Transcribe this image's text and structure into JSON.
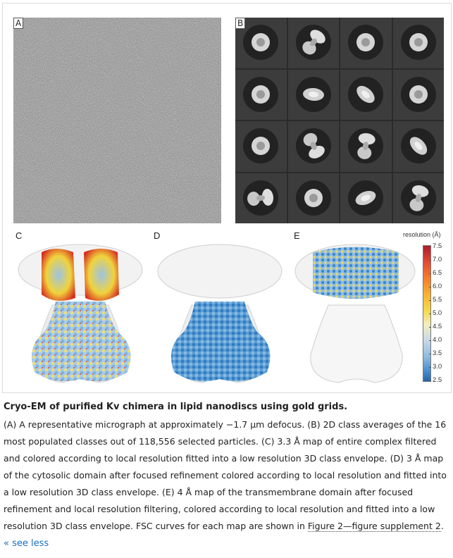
{
  "figure": {
    "panel_a": {
      "letter": "A"
    },
    "panel_b": {
      "letter": "B"
    },
    "panel_c": {
      "letter": "C"
    },
    "panel_d": {
      "letter": "D"
    },
    "panel_e": {
      "letter": "E"
    },
    "colorbar": {
      "title": "resolution (Å)",
      "ticks": [
        "7.5",
        "7.0",
        "6.5",
        "6.0",
        "5.5",
        "5.0",
        "4.5",
        "4.0",
        "3.5",
        "3.0",
        "2.5"
      ]
    }
  },
  "caption": {
    "title": "Cryo-EM of purified Kv chimera in lipid nanodiscs using gold grids.",
    "a_label": "(A)",
    "a_text": " A representative micrograph at approximately −1.7 µm defocus. ",
    "b_label": "(B)",
    "b_text": " 2D class averages of the 16 most populated classes out of 118,556 selected particles. ",
    "c_label": "(C)",
    "c_text": " 3.3 Å map of entire complex filtered and colored according to local resolution fitted into a low resolution 3D class envelope. ",
    "d_label": "(D)",
    "d_text": " 3 Å map of the cytosolic domain after focused refinement colored according to local resolution and fitted into a low resolution 3D class envelope. ",
    "e_label": "(E)",
    "e_text": " 4 Å map of the transmembrane domain after focused refinement and local resolution filtering, colored according to local resolution and fitted into a low resolution 3D class envelope. FSC curves for each map are shown in ",
    "link_text": "Figure 2—figure supplement 2",
    "end_text": ".",
    "see_less": "« see less"
  }
}
